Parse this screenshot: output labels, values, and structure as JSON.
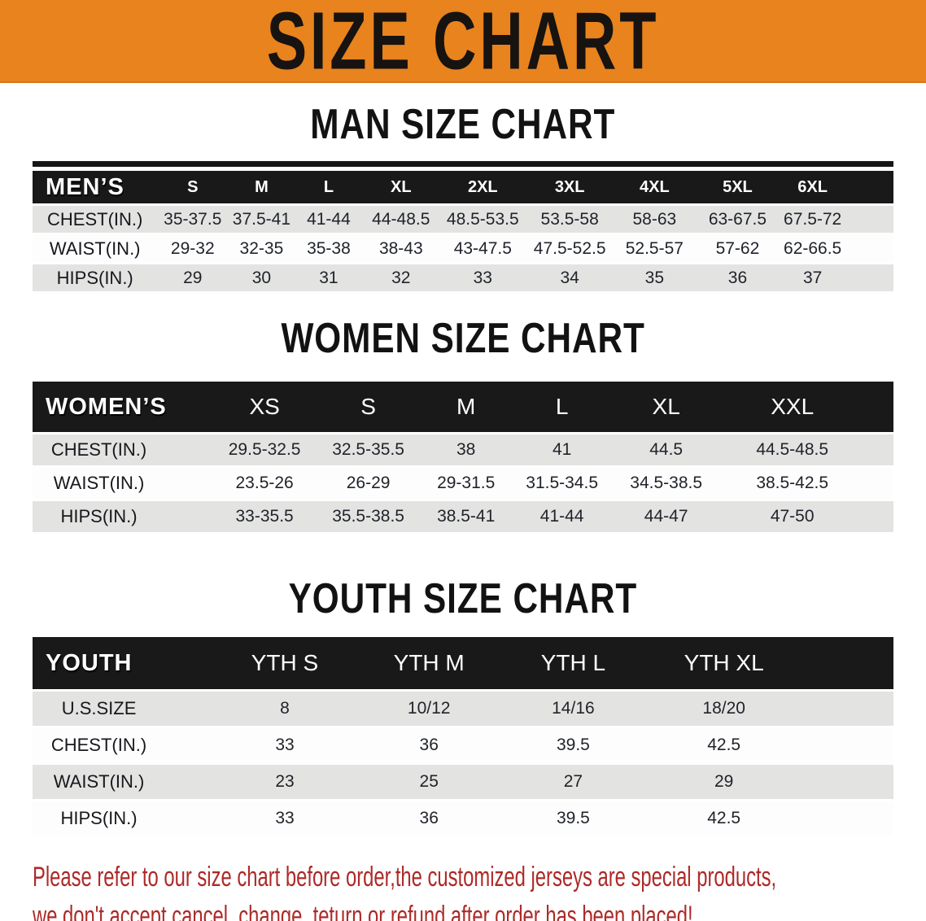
{
  "banner": {
    "title": "SIZE CHART"
  },
  "colors": {
    "banner_bg": "#E8831E",
    "table_header_bg": "#191919",
    "row_alt_bg": "#E3E3E2",
    "disclaimer_color": "#AD2A28"
  },
  "sections": [
    {
      "id": "men",
      "title": "MAN SIZE CHART",
      "table": {
        "header_label": "MEN’S",
        "columns": [
          "S",
          "M",
          "L",
          "XL",
          "2XL",
          "3XL",
          "4XL",
          "5XL",
          "6XL"
        ],
        "rows": [
          {
            "label": "CHEST(IN.)",
            "values": [
              "35-37.5",
              "37.5-41",
              "41-44",
              "44-48.5",
              "48.5-53.5",
              "53.5-58",
              "58-63",
              "63-67.5",
              "67.5-72"
            ]
          },
          {
            "label": "WAIST(IN.)",
            "values": [
              "29-32",
              "32-35",
              "35-38",
              "38-43",
              "43-47.5",
              "47.5-52.5",
              "52.5-57",
              "57-62",
              "62-66.5"
            ]
          },
          {
            "label": "HIPS(IN.)",
            "values": [
              "29",
              "30",
              "31",
              "32",
              "33",
              "34",
              "35",
              "36",
              "37"
            ]
          }
        ]
      }
    },
    {
      "id": "women",
      "title": "WOMEN SIZE CHART",
      "table": {
        "header_label": "WOMEN’S",
        "columns": [
          "XS",
          "S",
          "M",
          "L",
          "XL",
          "XXL"
        ],
        "rows": [
          {
            "label": "CHEST(IN.)",
            "values": [
              "29.5-32.5",
              "32.5-35.5",
              "38",
              "41",
              "44.5",
              "44.5-48.5"
            ]
          },
          {
            "label": "WAIST(IN.)",
            "values": [
              "23.5-26",
              "26-29",
              "29-31.5",
              "31.5-34.5",
              "34.5-38.5",
              "38.5-42.5"
            ]
          },
          {
            "label": "HIPS(IN.)",
            "values": [
              "33-35.5",
              "35.5-38.5",
              "38.5-41",
              "41-44",
              "44-47",
              "47-50"
            ]
          }
        ]
      }
    },
    {
      "id": "youth",
      "title": "YOUTH SIZE CHART",
      "table": {
        "header_label": "YOUTH",
        "columns": [
          "YTH S",
          "YTH M",
          "YTH L",
          "YTH XL"
        ],
        "rows": [
          {
            "label": "U.S.SIZE",
            "values": [
              "8",
              "10/12",
              "14/16",
              "18/20"
            ]
          },
          {
            "label": "CHEST(IN.)",
            "values": [
              "33",
              "36",
              "39.5",
              "42.5"
            ]
          },
          {
            "label": "WAIST(IN.)",
            "values": [
              "23",
              "25",
              "27",
              "29"
            ]
          },
          {
            "label": "HIPS(IN.)",
            "values": [
              "33",
              "36",
              "39.5",
              "42.5"
            ]
          }
        ]
      }
    }
  ],
  "footer": {
    "line1": "Please refer to our size chart before order,the customized jerseys are special products,",
    "line2": "we don't accept cancel, change, teturn or refund after order has been placed!"
  }
}
